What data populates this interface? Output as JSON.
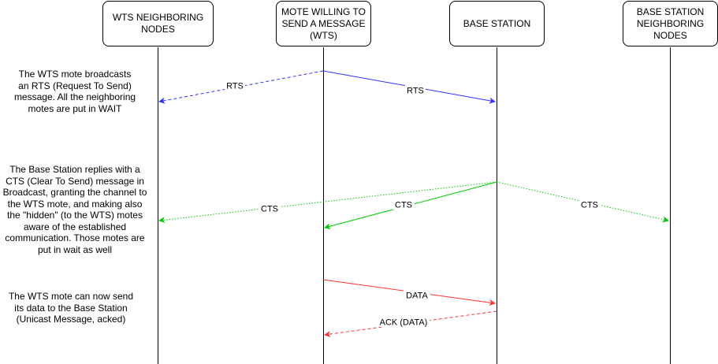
{
  "actors": [
    {
      "id": "wts_neighbors",
      "label": "WTS NEIGHBORING\nNODES"
    },
    {
      "id": "wts",
      "label": "MOTE WILLING TO\nSEND A MESSAGE\n(WTS)"
    },
    {
      "id": "bs",
      "label": "BASE STATION"
    },
    {
      "id": "bs_neighbors",
      "label": "BASE STATION\nNEIGHBORING\nNODES"
    }
  ],
  "notes": [
    {
      "id": "rts_note",
      "text": "The WTS mote broadcasts\nan RTS (Request To Send)\nmessage. All the neighboring\nmotes are put in WAIT"
    },
    {
      "id": "cts_note",
      "text": "The Base Station replies with a\nCTS (Clear To Send) message in\nBroadcast, granting the channel to\nthe WTS mote, and making also\nthe \"hidden\" (to the WTS) motes\naware of the established\ncommunication. Those motes are\nput in wait as well"
    },
    {
      "id": "data_note",
      "text": "The WTS mote can now send\nits data to the Base Station\n(Unicast Message, acked)"
    }
  ],
  "messages": [
    {
      "id": "rts-left",
      "label": "RTS",
      "from": "wts",
      "to": "wts_neighbors",
      "style": "dashed",
      "color": "#3333ff"
    },
    {
      "id": "rts-right",
      "label": "RTS",
      "from": "wts",
      "to": "bs",
      "style": "solid",
      "color": "#3333ff"
    },
    {
      "id": "cts-far-left",
      "label": "CTS",
      "from": "bs",
      "to": "wts_neighbors",
      "style": "dotted",
      "color": "#00cc00"
    },
    {
      "id": "cts-wts",
      "label": "CTS",
      "from": "bs",
      "to": "wts",
      "style": "solid",
      "color": "#00cc00"
    },
    {
      "id": "cts-right",
      "label": "CTS",
      "from": "bs",
      "to": "bs_neighbors",
      "style": "dotted",
      "color": "#00cc00"
    },
    {
      "id": "data",
      "label": "DATA",
      "from": "wts",
      "to": "bs",
      "style": "solid",
      "color": "#ff3333"
    },
    {
      "id": "ack",
      "label": "ACK (DATA)",
      "from": "bs",
      "to": "wts",
      "style": "dashed",
      "color": "#ff3333"
    }
  ]
}
